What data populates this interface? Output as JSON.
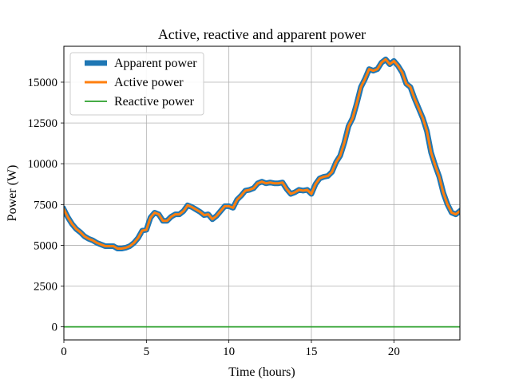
{
  "chart_data": {
    "type": "line",
    "title": "Active, reactive and apparent power",
    "xlabel": "Time (hours)",
    "ylabel": "Power (W)",
    "xlim": [
      0,
      24
    ],
    "ylim": [
      -800,
      17200
    ],
    "xticks": [
      0,
      5,
      10,
      15,
      20
    ],
    "yticks": [
      0,
      2500,
      5000,
      7500,
      10000,
      12500,
      15000
    ],
    "grid": true,
    "legend_position": "top-left",
    "x": [
      0,
      0.25,
      0.5,
      0.75,
      1,
      1.25,
      1.5,
      1.75,
      2,
      2.25,
      2.5,
      2.75,
      3,
      3.25,
      3.5,
      3.75,
      4,
      4.25,
      4.5,
      4.75,
      5,
      5.25,
      5.5,
      5.75,
      6,
      6.25,
      6.5,
      6.75,
      7,
      7.25,
      7.5,
      7.75,
      8,
      8.25,
      8.5,
      8.75,
      9,
      9.25,
      9.5,
      9.75,
      10,
      10.25,
      10.5,
      10.75,
      11,
      11.25,
      11.5,
      11.75,
      12,
      12.25,
      12.5,
      12.75,
      13,
      13.25,
      13.5,
      13.75,
      14,
      14.25,
      14.5,
      14.75,
      15,
      15.25,
      15.5,
      15.75,
      16,
      16.25,
      16.5,
      16.75,
      17,
      17.25,
      17.5,
      17.75,
      18,
      18.25,
      18.5,
      18.75,
      19,
      19.25,
      19.5,
      19.75,
      20,
      20.25,
      20.5,
      20.75,
      21,
      21.25,
      21.5,
      21.75,
      22,
      22.25,
      22.5,
      22.75,
      23,
      23.25,
      23.5,
      23.75,
      24
    ],
    "series": [
      {
        "name": "Apparent power",
        "color": "#1f77b4",
        "values": [
          7200,
          6700,
          6300,
          6000,
          5800,
          5550,
          5400,
          5300,
          5150,
          5050,
          4950,
          4950,
          4950,
          4800,
          4800,
          4850,
          4950,
          5150,
          5450,
          5900,
          5950,
          6700,
          7000,
          6900,
          6500,
          6500,
          6750,
          6900,
          6900,
          7100,
          7450,
          7350,
          7200,
          7050,
          6850,
          6900,
          6600,
          6800,
          7100,
          7400,
          7400,
          7300,
          7800,
          8050,
          8350,
          8400,
          8500,
          8800,
          8900,
          8800,
          8850,
          8800,
          8800,
          8850,
          8450,
          8150,
          8250,
          8400,
          8350,
          8400,
          8150,
          8750,
          9100,
          9200,
          9250,
          9500,
          10100,
          10500,
          11300,
          12300,
          12800,
          13700,
          14700,
          15200,
          15800,
          15700,
          15800,
          16200,
          16400,
          16100,
          16300,
          16000,
          15600,
          14900,
          14700,
          14000,
          13400,
          12800,
          12000,
          10700,
          9900,
          9200,
          8200,
          7500,
          7000,
          6900,
          7100
        ],
        "linewidth": 7
      },
      {
        "name": "Active power",
        "color": "#ff7f0e",
        "values": [
          7200,
          6700,
          6300,
          6000,
          5800,
          5550,
          5400,
          5300,
          5150,
          5050,
          4950,
          4950,
          4950,
          4800,
          4800,
          4850,
          4950,
          5150,
          5450,
          5900,
          5950,
          6700,
          7000,
          6900,
          6500,
          6500,
          6750,
          6900,
          6900,
          7100,
          7450,
          7350,
          7200,
          7050,
          6850,
          6900,
          6600,
          6800,
          7100,
          7400,
          7400,
          7300,
          7800,
          8050,
          8350,
          8400,
          8500,
          8800,
          8900,
          8800,
          8850,
          8800,
          8800,
          8850,
          8450,
          8150,
          8250,
          8400,
          8350,
          8400,
          8150,
          8750,
          9100,
          9200,
          9250,
          9500,
          10100,
          10500,
          11300,
          12300,
          12800,
          13700,
          14700,
          15200,
          15800,
          15700,
          15800,
          16200,
          16400,
          16100,
          16300,
          16000,
          15600,
          14900,
          14700,
          14000,
          13400,
          12800,
          12000,
          10700,
          9900,
          9200,
          8200,
          7500,
          7000,
          6900,
          7100
        ],
        "linewidth": 3
      },
      {
        "name": "Reactive power",
        "color": "#2ca02c",
        "values": [
          0,
          0
        ],
        "x": [
          0,
          24
        ],
        "linewidth": 1.8
      }
    ]
  }
}
